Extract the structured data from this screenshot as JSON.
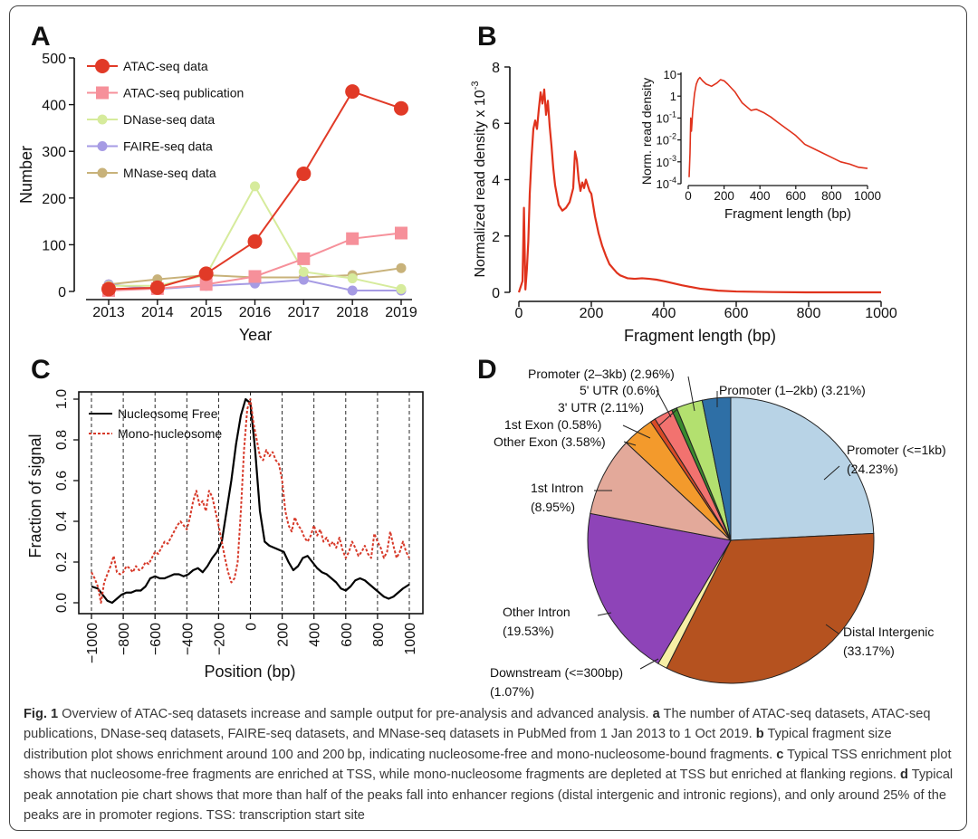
{
  "panels": {
    "a": "A",
    "b": "B",
    "c": "C",
    "d": "D"
  },
  "chart_data": [
    {
      "type": "line",
      "panel": "A",
      "xlabel": "Year",
      "ylabel": "Number",
      "categories": [
        "2013",
        "2014",
        "2015",
        "2016",
        "2017",
        "2018",
        "2019"
      ],
      "ylim": [
        0,
        500
      ],
      "yticks": [
        "0",
        "100",
        "200",
        "300",
        "400",
        "500"
      ],
      "series": [
        {
          "name": "ATAC-seq data",
          "color": "#e13a27",
          "marker": "circle-large",
          "values": [
            5,
            8,
            38,
            107,
            252,
            428,
            392
          ]
        },
        {
          "name": "ATAC-seq publication",
          "color": "#f6909a",
          "marker": "square",
          "values": [
            2,
            6,
            15,
            32,
            70,
            113,
            125
          ]
        },
        {
          "name": "DNase-seq data",
          "color": "#d6eb9c",
          "marker": "circle",
          "values": [
            12,
            12,
            35,
            225,
            42,
            28,
            5
          ]
        },
        {
          "name": "FAIRE-seq data",
          "color": "#a69be4",
          "marker": "circle",
          "values": [
            15,
            5,
            12,
            17,
            25,
            2,
            2
          ]
        },
        {
          "name": "MNase-seq data",
          "color": "#c8b27a",
          "marker": "circle",
          "values": [
            15,
            26,
            35,
            30,
            30,
            35,
            50
          ]
        }
      ]
    },
    {
      "type": "line",
      "panel": "B",
      "xlabel": "Fragment length (bp)",
      "ylabel": "Normalized read density x 10",
      "ylabel_exp": "-3",
      "xlim": [
        0,
        1000
      ],
      "ylim": [
        0,
        8
      ],
      "xticks": [
        "0",
        "200",
        "400",
        "600",
        "800",
        "1000"
      ],
      "yticks": [
        "0",
        "2",
        "4",
        "6",
        "8"
      ],
      "color": "#e0321c",
      "x": [
        0,
        10,
        14,
        18,
        22,
        26,
        30,
        35,
        40,
        45,
        50,
        55,
        60,
        65,
        70,
        75,
        80,
        85,
        90,
        95,
        100,
        110,
        120,
        130,
        140,
        150,
        155,
        160,
        165,
        170,
        175,
        180,
        185,
        190,
        195,
        200,
        210,
        220,
        230,
        240,
        250,
        260,
        270,
        280,
        290,
        300,
        320,
        340,
        360,
        380,
        400,
        450,
        500,
        550,
        600,
        700,
        800,
        900,
        1000
      ],
      "y": [
        0,
        0.4,
        3.0,
        0.1,
        0.8,
        1.8,
        3.5,
        4.8,
        5.8,
        6.1,
        5.8,
        6.5,
        7.1,
        6.7,
        7.2,
        6.3,
        6.8,
        5.9,
        5.2,
        4.4,
        3.8,
        3.1,
        2.9,
        3.0,
        3.2,
        3.7,
        5.0,
        4.7,
        4.0,
        3.6,
        3.9,
        3.7,
        4.0,
        3.8,
        3.6,
        3.5,
        2.7,
        2.1,
        1.65,
        1.3,
        1.0,
        0.85,
        0.7,
        0.6,
        0.55,
        0.5,
        0.48,
        0.5,
        0.48,
        0.45,
        0.4,
        0.25,
        0.13,
        0.06,
        0.03,
        0.01,
        0.0,
        0.0,
        0.0
      ],
      "inset": {
        "xlabel": "Fragment length (bp)",
        "ylabel": "Norm. read density",
        "xticks": [
          "0",
          "200",
          "400",
          "600",
          "800",
          "1000"
        ],
        "yticks": [
          {
            "base": "10",
            "exp": ""
          },
          {
            "base": "1",
            "exp": ""
          },
          {
            "base": "10",
            "exp": "-1"
          },
          {
            "base": "10",
            "exp": "-2"
          },
          {
            "base": "10",
            "exp": "-3"
          },
          {
            "base": "10",
            "exp": "-4"
          }
        ],
        "x": [
          5,
          10,
          14,
          18,
          25,
          35,
          45,
          55,
          65,
          80,
          100,
          130,
          160,
          180,
          200,
          220,
          260,
          300,
          350,
          380,
          420,
          460,
          500,
          550,
          600,
          650,
          700,
          750,
          800,
          850,
          900,
          950,
          1000
        ],
        "log10y": [
          -3.7,
          -2.6,
          -1.0,
          -1.6,
          -0.7,
          0.1,
          0.55,
          0.75,
          0.85,
          0.7,
          0.55,
          0.45,
          0.6,
          0.75,
          0.7,
          0.55,
          0.2,
          -0.3,
          -0.65,
          -0.6,
          -0.75,
          -0.95,
          -1.2,
          -1.5,
          -1.8,
          -2.2,
          -2.4,
          -2.6,
          -2.8,
          -3.0,
          -3.1,
          -3.25,
          -3.3
        ]
      }
    },
    {
      "type": "line",
      "panel": "C",
      "xlabel": "Position (bp)",
      "ylabel": "Fraction of signal",
      "xlim": [
        -1000,
        1000
      ],
      "ylim": [
        0,
        1
      ],
      "xticks": [
        "−1000",
        "−800",
        "−600",
        "−400",
        "−200",
        "0",
        "200",
        "400",
        "600",
        "800",
        "1000"
      ],
      "yticks": [
        "0.0",
        "0.2",
        "0.4",
        "0.6",
        "0.8",
        "1.0"
      ],
      "series": [
        {
          "name": "Nucleosome Free",
          "color": "#000000",
          "style": "solid",
          "x": [
            -1000,
            -960,
            -930,
            -900,
            -870,
            -840,
            -810,
            -780,
            -750,
            -720,
            -690,
            -660,
            -630,
            -600,
            -570,
            -540,
            -510,
            -480,
            -450,
            -420,
            -390,
            -360,
            -330,
            -300,
            -270,
            -240,
            -210,
            -180,
            -150,
            -120,
            -90,
            -60,
            -30,
            0,
            30,
            60,
            90,
            120,
            150,
            180,
            210,
            240,
            270,
            300,
            330,
            360,
            390,
            420,
            450,
            480,
            510,
            540,
            570,
            600,
            630,
            660,
            690,
            720,
            750,
            780,
            810,
            840,
            870,
            900,
            930,
            960,
            1000
          ],
          "y": [
            0.08,
            0.07,
            0.04,
            0.01,
            0.0,
            0.02,
            0.04,
            0.05,
            0.05,
            0.06,
            0.06,
            0.08,
            0.12,
            0.13,
            0.12,
            0.12,
            0.13,
            0.14,
            0.14,
            0.13,
            0.14,
            0.16,
            0.17,
            0.15,
            0.18,
            0.22,
            0.25,
            0.3,
            0.45,
            0.6,
            0.78,
            0.92,
            1.0,
            0.98,
            0.75,
            0.45,
            0.3,
            0.28,
            0.27,
            0.26,
            0.25,
            0.2,
            0.16,
            0.18,
            0.22,
            0.23,
            0.2,
            0.17,
            0.15,
            0.14,
            0.12,
            0.1,
            0.07,
            0.06,
            0.08,
            0.11,
            0.12,
            0.11,
            0.09,
            0.07,
            0.05,
            0.03,
            0.02,
            0.03,
            0.05,
            0.07,
            0.09
          ]
        },
        {
          "name": "Mono-nucleosome",
          "color": "#d73a2a",
          "style": "dashed",
          "x": [
            -1000,
            -980,
            -960,
            -940,
            -920,
            -900,
            -880,
            -860,
            -840,
            -820,
            -800,
            -780,
            -760,
            -740,
            -720,
            -700,
            -680,
            -660,
            -640,
            -620,
            -600,
            -580,
            -560,
            -540,
            -520,
            -500,
            -480,
            -460,
            -440,
            -420,
            -400,
            -380,
            -360,
            -340,
            -320,
            -300,
            -280,
            -260,
            -240,
            -220,
            -200,
            -180,
            -160,
            -140,
            -120,
            -100,
            -80,
            -60,
            -40,
            -20,
            0,
            20,
            40,
            60,
            80,
            100,
            120,
            140,
            160,
            180,
            200,
            220,
            240,
            260,
            280,
            300,
            320,
            340,
            360,
            380,
            400,
            420,
            440,
            460,
            480,
            500,
            520,
            540,
            560,
            580,
            600,
            620,
            640,
            660,
            680,
            700,
            720,
            740,
            760,
            780,
            800,
            820,
            840,
            860,
            880,
            900,
            920,
            940,
            960,
            980,
            1000
          ],
          "y": [
            0.15,
            0.12,
            0.08,
            0.0,
            0.1,
            0.14,
            0.18,
            0.23,
            0.15,
            0.14,
            0.15,
            0.18,
            0.17,
            0.15,
            0.18,
            0.16,
            0.17,
            0.2,
            0.19,
            0.22,
            0.25,
            0.24,
            0.27,
            0.3,
            0.29,
            0.32,
            0.35,
            0.38,
            0.4,
            0.38,
            0.36,
            0.42,
            0.5,
            0.55,
            0.48,
            0.5,
            0.45,
            0.55,
            0.52,
            0.45,
            0.38,
            0.3,
            0.22,
            0.15,
            0.1,
            0.12,
            0.2,
            0.45,
            0.75,
            0.95,
            1.0,
            0.88,
            0.8,
            0.72,
            0.7,
            0.75,
            0.72,
            0.74,
            0.7,
            0.68,
            0.6,
            0.45,
            0.38,
            0.35,
            0.42,
            0.38,
            0.36,
            0.32,
            0.3,
            0.33,
            0.38,
            0.33,
            0.36,
            0.3,
            0.32,
            0.28,
            0.3,
            0.27,
            0.32,
            0.26,
            0.22,
            0.25,
            0.3,
            0.27,
            0.23,
            0.25,
            0.28,
            0.24,
            0.22,
            0.34,
            0.3,
            0.27,
            0.22,
            0.25,
            0.35,
            0.28,
            0.22,
            0.25,
            0.3,
            0.25,
            0.22
          ]
        }
      ]
    },
    {
      "type": "pie",
      "panel": "D",
      "slices": [
        {
          "label": "Promoter (<=1kb)",
          "pct_text": "(24.23%)",
          "value": 24.23,
          "color": "#b8d3e6"
        },
        {
          "label": "Distal Intergenic",
          "pct_text": "(33.17%)",
          "value": 33.17,
          "color": "#b5521f"
        },
        {
          "label": "Downstream (<=300bp)",
          "pct_text": "(1.07%)",
          "value": 1.07,
          "color": "#f7efa6"
        },
        {
          "label": "Other Intron",
          "pct_text": "(19.53%)",
          "value": 19.53,
          "color": "#8e44b8"
        },
        {
          "label": "1st Intron",
          "pct_text": "(8.95%)",
          "value": 8.95,
          "color": "#e3a99a"
        },
        {
          "label": "Other Exon",
          "pct_text": "(3.58%)",
          "value": 3.58,
          "color": "#f39a2c"
        },
        {
          "label": "1st Exon",
          "pct_text": "(0.58%)",
          "value": 0.58,
          "color": "#d94a26"
        },
        {
          "label": "3' UTR",
          "pct_text": "(2.11%)",
          "value": 2.11,
          "color": "#f2726f"
        },
        {
          "label": "5' UTR",
          "pct_text": "(0.6%)",
          "value": 0.6,
          "color": "#3a8a2e"
        },
        {
          "label": "Promoter (2–3kb)",
          "pct_text": "(2.96%)",
          "value": 2.96,
          "color": "#b3e06f"
        },
        {
          "label": "Promoter (1–2kb)",
          "pct_text": "(3.21%)",
          "value": 3.21,
          "color": "#2e6fa6"
        }
      ],
      "labels": [
        "Promoter (<=1kb)",
        "(24.23%)",
        "Distal Intergenic",
        "(33.17%)",
        "Downstream (<=300bp)",
        "(1.07%)",
        "Other Intron",
        "(19.53%)",
        "1st Intron",
        "(8.95%)",
        "Other Exon (3.58%)",
        "1st Exon (0.58%)",
        "3' UTR (2.11%)",
        "5' UTR (0.6%)",
        "Promoter (2–3kb) (2.96%)",
        "Promoter (1–2kb) (3.21%)"
      ]
    }
  ],
  "caption": {
    "fig_label": "Fig. 1",
    "intro": " Overview of ATAC-seq datasets increase and sample output for pre-analysis and advanced analysis. ",
    "a_label": "a",
    "a_text": " The number of ATAC-seq datasets, ATAC-seq publications, DNase-seq datasets, FAIRE-seq datasets, and MNase-seq datasets in PubMed from 1 Jan 2013 to 1 Oct 2019. ",
    "b_label": "b",
    "b_text": " Typical fragment size distribution plot shows enrichment around 100 and 200 bp, indicating nucleosome-free and mono-nucleosome-bound fragments. ",
    "c_label": "c",
    "c_text": " Typical TSS enrichment plot shows that nucleosome-free fragments are enriched at TSS, while mono-nucleosome fragments are depleted at TSS but enriched at flanking regions. ",
    "d_label": "d",
    "d_text": " Typical peak annotation pie chart shows that more than half of the peaks fall into enhancer regions (distal intergenic and intronic regions), and only around 25% of the peaks are in promoter regions. TSS: transcription start site"
  }
}
